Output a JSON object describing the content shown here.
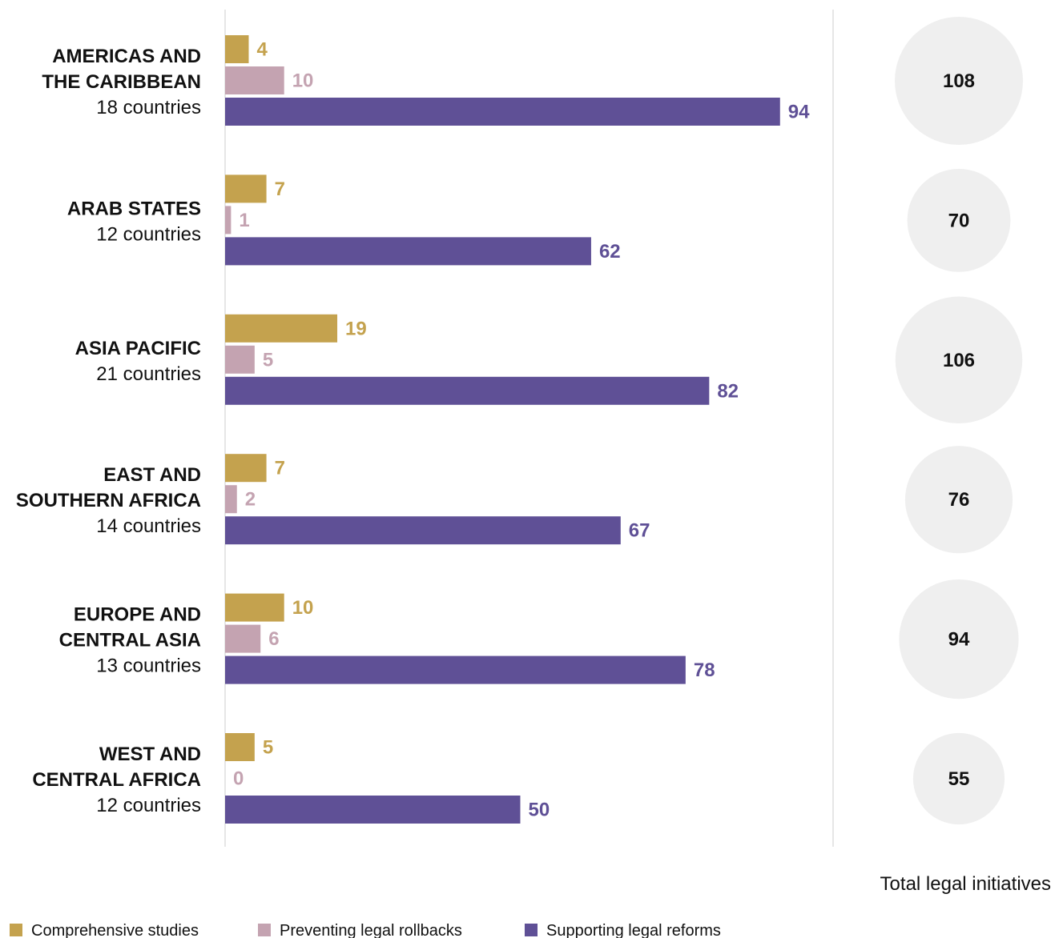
{
  "chart_data": {
    "type": "bar",
    "orientation": "horizontal",
    "categories": [
      {
        "name_lines": [
          "AMERICAS AND",
          "THE CARIBBEAN"
        ],
        "countries": "18 countries"
      },
      {
        "name_lines": [
          "ARAB STATES"
        ],
        "countries": "12 countries"
      },
      {
        "name_lines": [
          "ASIA PACIFIC"
        ],
        "countries": "21 countries"
      },
      {
        "name_lines": [
          "EAST AND",
          "SOUTHERN AFRICA"
        ],
        "countries": "14 countries"
      },
      {
        "name_lines": [
          "EUROPE AND",
          "CENTRAL ASIA"
        ],
        "countries": "13 countries"
      },
      {
        "name_lines": [
          "WEST AND",
          "CENTRAL AFRICA"
        ],
        "countries": "12 countries"
      }
    ],
    "series": [
      {
        "name": "Comprehensive studies",
        "color": "#c4a24e",
        "values": [
          4,
          7,
          19,
          7,
          10,
          5
        ]
      },
      {
        "name": "Preventing legal rollbacks",
        "color": "#c4a3b1",
        "values": [
          10,
          1,
          5,
          2,
          6,
          0
        ]
      },
      {
        "name": "Supporting legal reforms",
        "color": "#5f5096",
        "values": [
          94,
          62,
          82,
          67,
          78,
          50
        ]
      }
    ],
    "totals": [
      108,
      70,
      106,
      76,
      94,
      55
    ],
    "totals_caption": "Total legal initiatives",
    "xlim": [
      0,
      100
    ],
    "legend_position": "bottom-left",
    "circle_color": "#efefef"
  }
}
